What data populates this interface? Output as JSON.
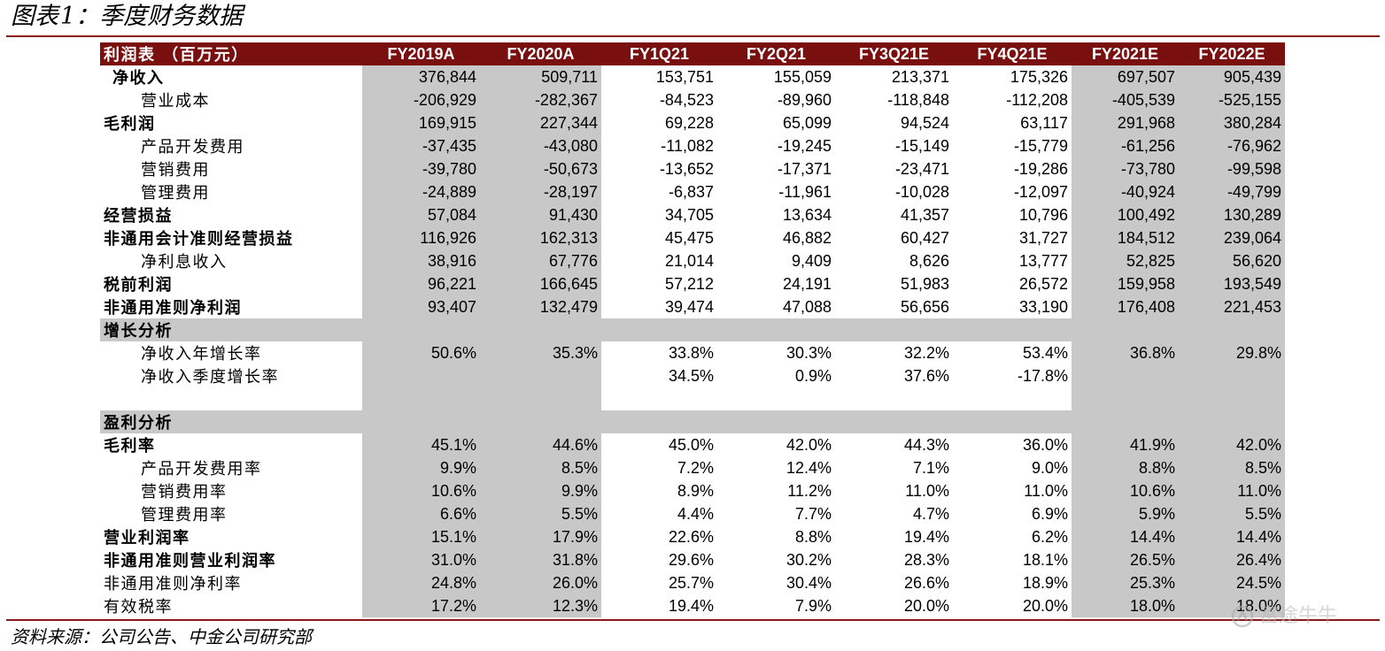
{
  "title": {
    "prefix": "图表",
    "number": "1：",
    "text": "季度财务数据"
  },
  "columns": [
    "利润表 （百万元）",
    "FY2019A",
    "FY2020A",
    "FY1Q21",
    "FY2Q21",
    "FY3Q21E",
    "FY4Q21E",
    "FY2021E",
    "FY2022E"
  ],
  "income_rows": [
    {
      "label": "净收入",
      "style": "l1i",
      "values": [
        "376,844",
        "509,711",
        "153,751",
        "155,059",
        "213,371",
        "175,326",
        "697,507",
        "905,439"
      ]
    },
    {
      "label": "营业成本",
      "style": "l2",
      "values": [
        "-206,929",
        "-282,367",
        "-84,523",
        "-89,960",
        "-118,848",
        "-112,208",
        "-405,539",
        "-525,155"
      ]
    },
    {
      "label": "毛利润",
      "style": "l1",
      "values": [
        "169,915",
        "227,344",
        "69,228",
        "65,099",
        "94,524",
        "63,117",
        "291,968",
        "380,284"
      ]
    },
    {
      "label": "产品开发费用",
      "style": "l2",
      "values": [
        "-37,435",
        "-43,080",
        "-11,082",
        "-19,245",
        "-15,149",
        "-15,779",
        "-61,256",
        "-76,962"
      ]
    },
    {
      "label": "营销费用",
      "style": "l2",
      "values": [
        "-39,780",
        "-50,673",
        "-13,652",
        "-17,371",
        "-23,471",
        "-19,286",
        "-73,780",
        "-99,598"
      ]
    },
    {
      "label": "管理费用",
      "style": "l2",
      "values": [
        "-24,889",
        "-28,197",
        "-6,837",
        "-11,961",
        "-10,028",
        "-12,097",
        "-40,924",
        "-49,799"
      ]
    },
    {
      "label": "经营损益",
      "style": "l1",
      "values": [
        "57,084",
        "91,430",
        "34,705",
        "13,634",
        "41,357",
        "10,796",
        "100,492",
        "130,289"
      ]
    },
    {
      "label": "非通用会计准则经营损益",
      "style": "l1",
      "values": [
        "116,926",
        "162,313",
        "45,475",
        "46,882",
        "60,427",
        "31,727",
        "184,512",
        "239,064"
      ]
    },
    {
      "label": "净利息收入",
      "style": "l2",
      "values": [
        "38,916",
        "67,776",
        "21,014",
        "9,409",
        "8,626",
        "13,777",
        "52,825",
        "56,620"
      ]
    },
    {
      "label": "税前利润",
      "style": "l1",
      "values": [
        "96,221",
        "166,645",
        "57,212",
        "24,191",
        "51,983",
        "26,572",
        "159,958",
        "193,549"
      ]
    },
    {
      "label": "非通用准则净利润",
      "style": "l1",
      "values": [
        "93,407",
        "132,479",
        "39,474",
        "47,088",
        "56,656",
        "33,190",
        "176,408",
        "221,453"
      ]
    }
  ],
  "growth_section": {
    "title": "增长分析",
    "rows": [
      {
        "label": "净收入年增长率",
        "style": "l2",
        "values": [
          "50.6%",
          "35.3%",
          "33.8%",
          "30.3%",
          "32.2%",
          "53.4%",
          "36.8%",
          "29.8%"
        ]
      },
      {
        "label": "净收入季度增长率",
        "style": "l2",
        "values": [
          "",
          "",
          "34.5%",
          "0.9%",
          "37.6%",
          "-17.8%",
          "",
          ""
        ]
      }
    ]
  },
  "profit_section": {
    "title": "盈利分析",
    "rows": [
      {
        "label": "毛利率",
        "style": "l1",
        "values": [
          "45.1%",
          "44.6%",
          "45.0%",
          "42.0%",
          "44.3%",
          "36.0%",
          "41.9%",
          "42.0%"
        ]
      },
      {
        "label": "产品开发费用率",
        "style": "l2",
        "values": [
          "9.9%",
          "8.5%",
          "7.2%",
          "12.4%",
          "7.1%",
          "9.0%",
          "8.8%",
          "8.5%"
        ]
      },
      {
        "label": "营销费用率",
        "style": "l2",
        "values": [
          "10.6%",
          "9.9%",
          "8.9%",
          "11.2%",
          "11.0%",
          "11.0%",
          "10.6%",
          "11.0%"
        ]
      },
      {
        "label": "管理费用率",
        "style": "l2",
        "values": [
          "6.6%",
          "5.5%",
          "4.4%",
          "7.7%",
          "4.7%",
          "6.9%",
          "5.9%",
          "5.5%"
        ]
      },
      {
        "label": "营业利润率",
        "style": "l1",
        "values": [
          "15.1%",
          "17.9%",
          "22.6%",
          "8.8%",
          "19.4%",
          "6.2%",
          "14.4%",
          "14.4%"
        ]
      },
      {
        "label": "非通用准则营业利润率",
        "style": "l1",
        "values": [
          "31.0%",
          "31.8%",
          "29.6%",
          "30.2%",
          "28.3%",
          "18.1%",
          "26.5%",
          "26.4%"
        ]
      },
      {
        "label": "非通用准则净利率",
        "style": "l1n",
        "values": [
          "24.8%",
          "26.0%",
          "25.7%",
          "30.4%",
          "26.6%",
          "18.9%",
          "25.3%",
          "24.5%"
        ]
      },
      {
        "label": "有效税率",
        "style": "l1n",
        "values": [
          "17.2%",
          "12.3%",
          "19.4%",
          "7.9%",
          "20.0%",
          "20.0%",
          "18.0%",
          "18.0%"
        ]
      }
    ]
  },
  "source": "资料来源：公司公告、中金公司研究部",
  "watermark": "富途牛牛",
  "colors": {
    "header_bg": "#7a0f0f",
    "rule": "#8b1a1a",
    "shade": "#c8c8c8"
  }
}
